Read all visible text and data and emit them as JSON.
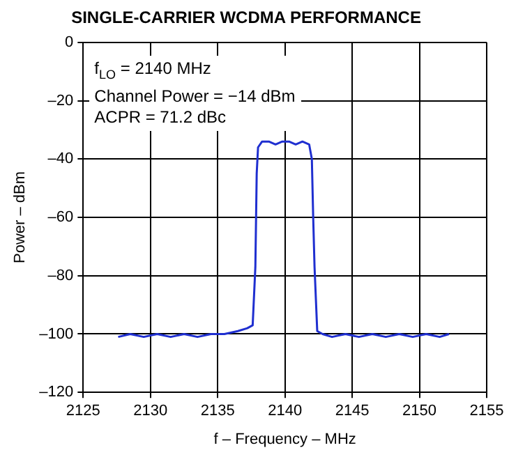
{
  "chart_data": {
    "type": "line",
    "title": "SINGLE-CARRIER WCDMA PERFORMANCE",
    "xlabel": "f – Frequency – MHz",
    "ylabel": "Power – dBm",
    "annotations": [
      "f$_{LO}$ = 2140 MHz",
      "Channel Power = −14 dBm",
      "ACPR = 71.2 dBc"
    ],
    "xlim": [
      2125,
      2155
    ],
    "xticks": [
      2125,
      2130,
      2135,
      2140,
      2145,
      2150,
      2155
    ],
    "ylim": [
      -120,
      0
    ],
    "yticks": [
      {
        "value": -120,
        "label": "–120"
      },
      {
        "value": -100,
        "label": "–100"
      },
      {
        "value": -80,
        "label": "–80"
      },
      {
        "value": -60,
        "label": "–60"
      },
      {
        "value": -40,
        "label": "–40"
      },
      {
        "value": -20,
        "label": "–20"
      },
      0
    ],
    "grid": true,
    "legend": false,
    "marker": "none",
    "line_style": "solid",
    "series": [
      {
        "color": "#1f2fd0",
        "x": [
          2127.6,
          2128.5,
          2129.5,
          2130.5,
          2131.5,
          2132.5,
          2133.5,
          2134.5,
          2135.5,
          2136.5,
          2137.2,
          2137.6,
          2137.8,
          2137.9,
          2138.0,
          2138.3,
          2138.8,
          2139.3,
          2139.8,
          2140.3,
          2140.8,
          2141.3,
          2141.8,
          2142.0,
          2142.1,
          2142.2,
          2142.4,
          2142.8,
          2143.5,
          2144.5,
          2145.5,
          2146.5,
          2147.5,
          2148.5,
          2149.5,
          2150.5,
          2151.5,
          2152.2
        ],
        "values": [
          -101,
          -100,
          -101,
          -100,
          -101,
          -100,
          -101,
          -100,
          -100,
          -99,
          -98,
          -97,
          -77,
          -45,
          -36,
          -34,
          -34,
          -35,
          -34,
          -34,
          -35,
          -34,
          -35,
          -40,
          -60,
          -77,
          -99,
          -100,
          -101,
          -100,
          -101,
          -100,
          -101,
          -100,
          -101,
          -100,
          -101,
          -100
        ]
      }
    ]
  }
}
